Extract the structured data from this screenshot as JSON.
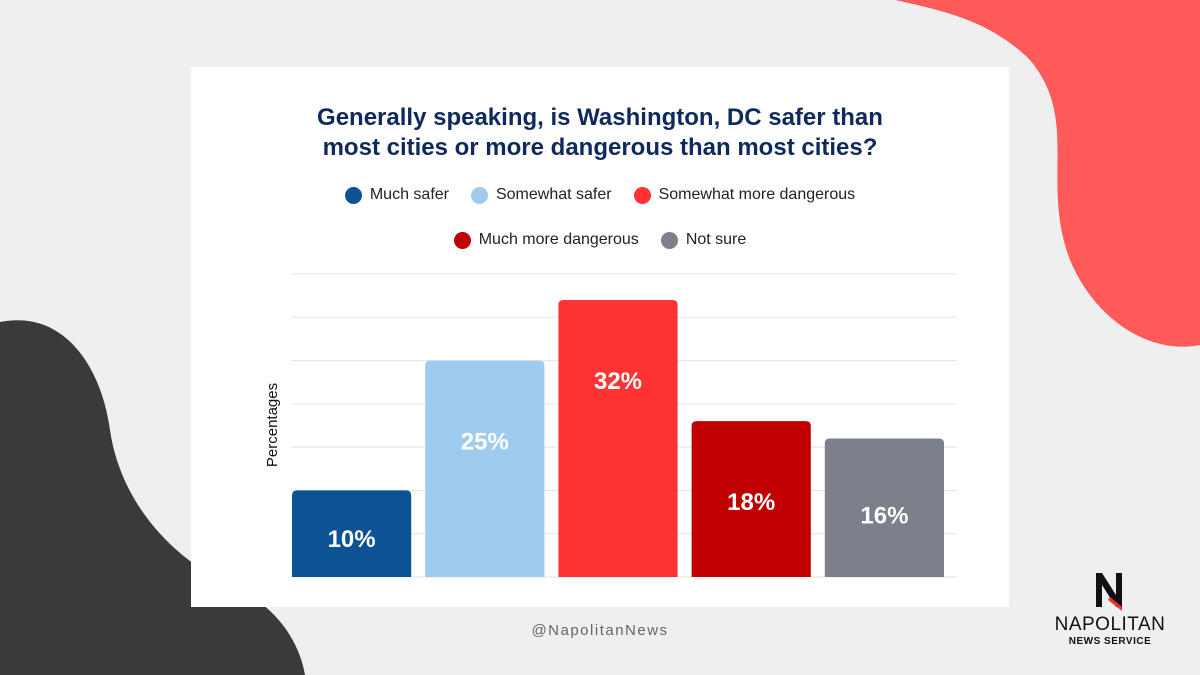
{
  "colors": {
    "much_safer": "#0b5394",
    "somewhat_safer": "#9fcbee",
    "somewhat_more_dangerous": "#ff3333",
    "much_more_dangerous": "#c00000",
    "not_sure": "#7b808b",
    "title": "#0e2a5c",
    "shape_red": "#ff5a5a",
    "shape_dark": "#3a3a3a"
  },
  "legend": [
    {
      "label": "Much safer",
      "color": "#0b5394"
    },
    {
      "label": "Somewhat safer",
      "color": "#9fcbee"
    },
    {
      "label": "Somewhat more dangerous",
      "color": "#ff3333"
    },
    {
      "label": "Much more dangerous",
      "color": "#c00000"
    },
    {
      "label": "Not sure",
      "color": "#7b808b"
    }
  ],
  "chart_data": {
    "type": "bar",
    "title": "Generally speaking, is Washington, DC safer than\nmost cities or more dangerous than most cities?",
    "ylabel": "Percentages",
    "categories": [
      "Much safer",
      "Somewhat safer",
      "Somewhat more dangerous",
      "Much more dangerous",
      "Not sure"
    ],
    "values": [
      10,
      25,
      32,
      18,
      16
    ],
    "data_labels": [
      "10%",
      "25%",
      "32%",
      "18%",
      "16%"
    ],
    "ylim": [
      0,
      35
    ],
    "grid": true,
    "legend_position": "top"
  },
  "footer": {
    "handle": "@NapolitanNews"
  },
  "logo": {
    "word": "NAPOLITAN",
    "sub": "NEWS SERVICE"
  }
}
